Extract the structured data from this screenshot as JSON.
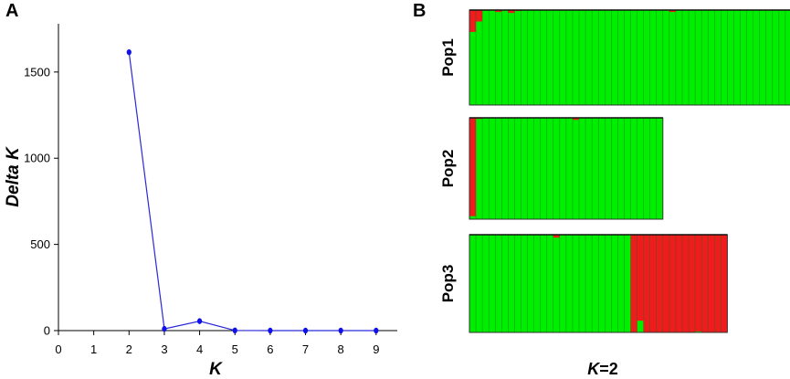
{
  "panels": {
    "a": "A",
    "b": "B"
  },
  "chart_data": [
    {
      "type": "line",
      "x": [
        2,
        3,
        4,
        5,
        6,
        7,
        8,
        9
      ],
      "y": [
        1615,
        10,
        55,
        1,
        0,
        0,
        0,
        0
      ],
      "xlabel": "K",
      "ylabel": "Delta K",
      "xlim": [
        0,
        9.6
      ],
      "ylim": [
        0,
        1780
      ],
      "xticks": [
        0,
        1,
        2,
        3,
        4,
        5,
        6,
        7,
        8,
        9
      ],
      "yticks": [
        0,
        500,
        1000,
        1500
      ],
      "grid": false,
      "line_color": "#2a2ad6",
      "marker_color": "#1010e8"
    },
    {
      "type": "bar",
      "stacked": true,
      "colors": {
        "cluster1": "#ee1c1c",
        "cluster2": "#00ee00"
      },
      "caption_prefix": "K",
      "caption_suffix": "=2",
      "populations": [
        {
          "name": "Pop1",
          "cluster1": [
            0.23,
            0.12,
            0,
            0,
            0.02,
            0,
            0.03,
            0.01,
            0,
            0,
            0,
            0,
            0,
            0,
            0,
            0,
            0,
            0,
            0,
            0,
            0,
            0,
            0,
            0,
            0,
            0,
            0,
            0,
            0,
            0,
            0,
            0.02,
            0,
            0,
            0,
            0,
            0,
            0,
            0,
            0,
            0,
            0,
            0,
            0,
            0,
            0,
            0,
            0,
            0,
            0
          ]
        },
        {
          "name": "Pop2",
          "cluster1": [
            0.97,
            0.01,
            0,
            0,
            0,
            0,
            0,
            0,
            0,
            0,
            0,
            0,
            0,
            0,
            0,
            0,
            0.02,
            0,
            0,
            0,
            0,
            0,
            0,
            0,
            0,
            0,
            0,
            0,
            0,
            0
          ]
        },
        {
          "name": "Pop3",
          "cluster1": [
            0,
            0,
            0,
            0,
            0,
            0,
            0,
            0,
            0,
            0,
            0,
            0,
            0,
            0.03,
            0,
            0,
            0,
            0,
            0,
            0,
            0,
            0,
            0,
            0,
            0,
            1,
            0.88,
            1,
            1,
            1,
            1,
            1,
            1,
            1,
            1,
            0.99,
            1,
            1,
            1,
            1
          ]
        }
      ]
    }
  ]
}
